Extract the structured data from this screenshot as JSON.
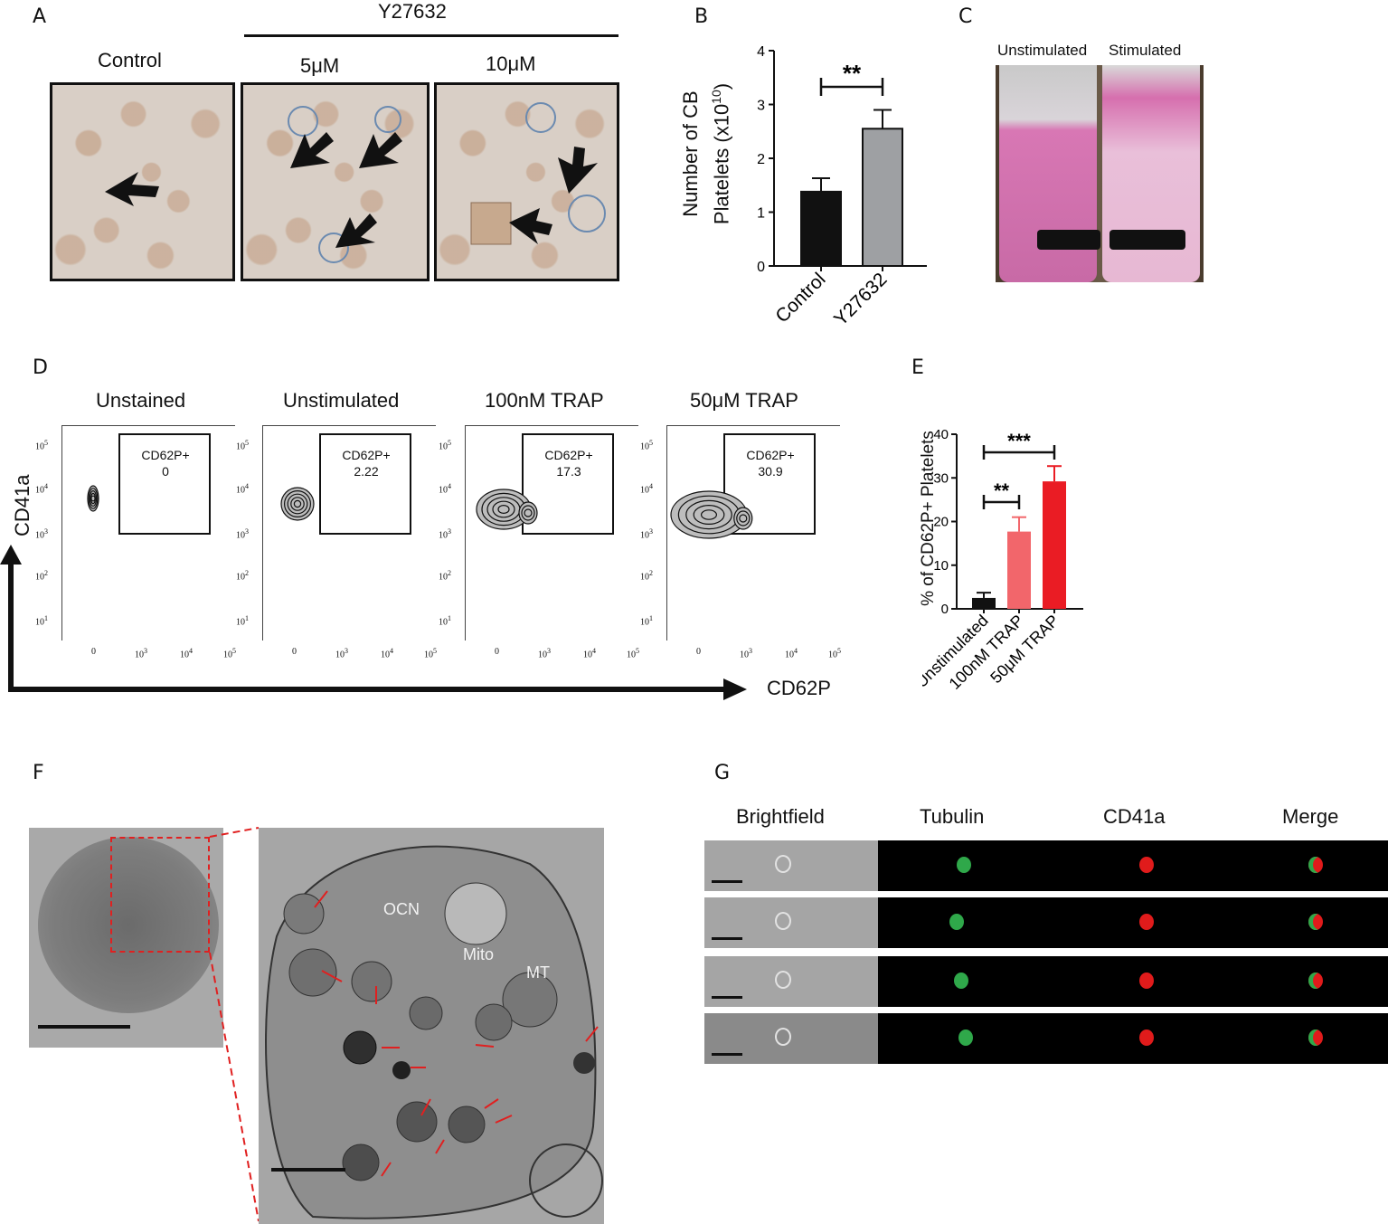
{
  "panel_letters": {
    "a": "A",
    "b": "B",
    "c": "C",
    "d": "D",
    "e": "E",
    "f": "F",
    "g": "G"
  },
  "panel_a": {
    "treatment": "Y27632",
    "labels": [
      "Control",
      "5μM",
      "10μM"
    ]
  },
  "panel_b": {
    "ylabel_line1": "Number of CB",
    "ylabel_line2": "Platelets (x10",
    "ylabel_sup": "10",
    "ylabel_end": ")",
    "significance": "**",
    "yticks": [
      "0",
      "1",
      "2",
      "3",
      "4"
    ]
  },
  "panel_c": {
    "labels": [
      "Unstimulated",
      "Stimulated"
    ]
  },
  "panel_d": {
    "titles": [
      "Unstained",
      "Unstimulated",
      "100nM TRAP",
      "50μM TRAP"
    ],
    "gate_label": "CD62P+",
    "gate_values": [
      "0",
      "2.22",
      "17.3",
      "30.9"
    ],
    "y_axis": "CD41a",
    "x_axis": "CD62P",
    "y_ticks": [
      "10",
      "10",
      "10",
      "10",
      "10"
    ],
    "y_tick_exps": [
      "5",
      "4",
      "3",
      "2",
      "1"
    ],
    "x_ticks": [
      "0",
      "10",
      "10",
      "10"
    ],
    "x_tick_exps": [
      "",
      "3",
      "4",
      "5"
    ]
  },
  "panel_e": {
    "ylabel": "% of CD62P+ Platelets",
    "sig1": "**",
    "sig2": "***",
    "yticks": [
      "0",
      "10",
      "20",
      "30",
      "40"
    ]
  },
  "panel_f": {
    "labels": [
      "OCN",
      "Mito",
      "MT"
    ]
  },
  "panel_g": {
    "headers": [
      "Brightfield",
      "Tubulin",
      "CD41a",
      "Merge"
    ]
  },
  "colors": {
    "control_bar": "#111111",
    "y27632_bar": "#9ea0a3",
    "unstim_bar": "#111111",
    "trap100_bar": "#f2666b",
    "trap50_bar": "#ea1c24"
  },
  "chart_data": [
    {
      "type": "bar",
      "categories": [
        "Control",
        "Y27632"
      ],
      "values": [
        1.38,
        2.55
      ],
      "errors": [
        0.25,
        0.35
      ],
      "ylabel": "Number of CB Platelets (x10^10)",
      "ylim": [
        0,
        4
      ]
    },
    {
      "type": "bar",
      "categories": [
        "Unstimulated",
        "100nM TRAP",
        "50μM TRAP"
      ],
      "values": [
        2.5,
        17.7,
        29.2
      ],
      "errors": [
        1.2,
        3.3,
        3.5
      ],
      "ylabel": "% of CD62P+ Platelets",
      "ylim": [
        0,
        40
      ]
    }
  ]
}
